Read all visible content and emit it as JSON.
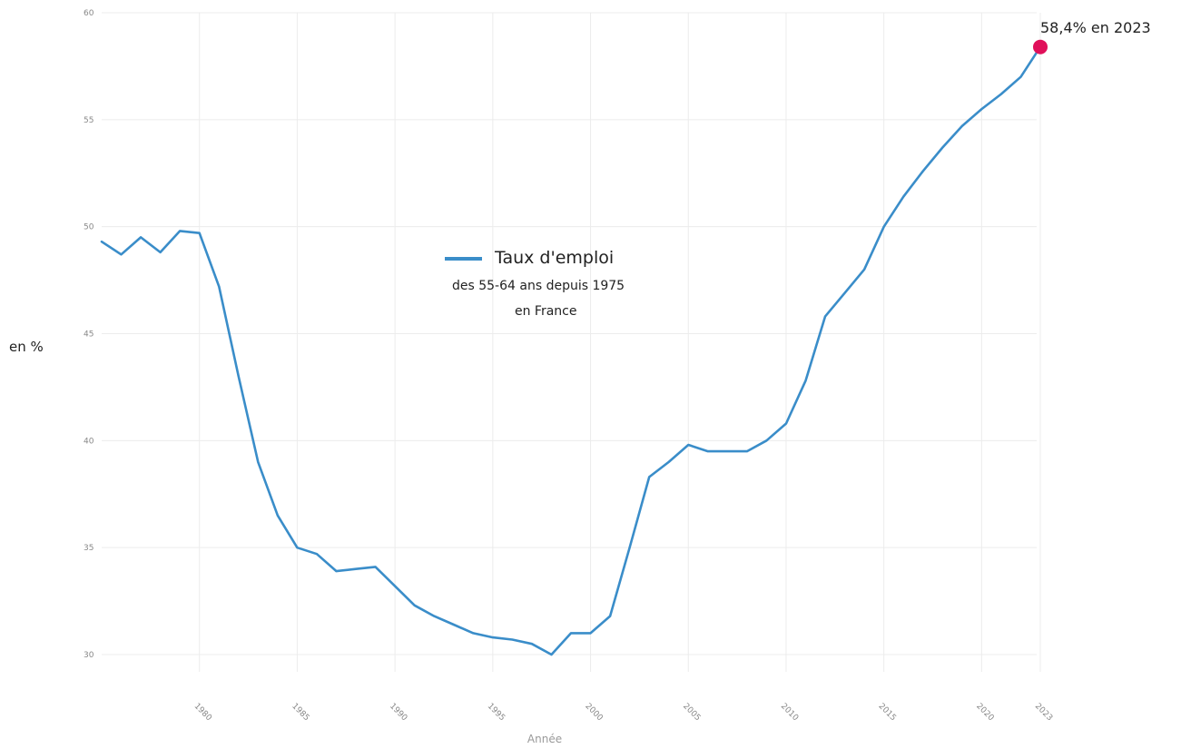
{
  "chart_data": {
    "type": "line",
    "ylabel": "en %",
    "xlabel": "Année",
    "ylim": [
      30,
      60
    ],
    "yticks": [
      30,
      35,
      40,
      45,
      50,
      55,
      60
    ],
    "xticks": [
      1980,
      1985,
      1990,
      1995,
      2000,
      2005,
      2010,
      2015,
      2020,
      2023
    ],
    "xlim": [
      1975,
      2023
    ],
    "grid": true,
    "legend": {
      "title": "Taux d'emploi",
      "subtitle_line1": "des 55-64 ans depuis 1975",
      "subtitle_line2": "en France",
      "placement": "center"
    },
    "annotation": {
      "label": "58,4% en 2023",
      "x": 2023,
      "y": 58.4,
      "color": "#e0105a"
    },
    "series": [
      {
        "color": "#3a8dc9",
        "x": [
          1975,
          1976,
          1977,
          1978,
          1979,
          1980,
          1981,
          1982,
          1983,
          1984,
          1985,
          1986,
          1987,
          1988,
          1989,
          1990,
          1991,
          1992,
          1993,
          1994,
          1995,
          1996,
          1997,
          1998,
          1999,
          2000,
          2001,
          2002,
          2003,
          2004,
          2005,
          2006,
          2007,
          2008,
          2009,
          2010,
          2011,
          2012,
          2013,
          2014,
          2015,
          2016,
          2017,
          2018,
          2019,
          2020,
          2021,
          2022,
          2023
        ],
        "values": [
          49.3,
          48.7,
          49.5,
          48.8,
          49.8,
          49.7,
          47.2,
          43.0,
          39.0,
          36.5,
          35.0,
          34.7,
          33.9,
          34.0,
          34.1,
          33.2,
          32.3,
          31.8,
          31.4,
          31.0,
          30.8,
          30.7,
          30.5,
          30.0,
          31.0,
          31.0,
          31.8,
          35.0,
          38.3,
          39.0,
          39.8,
          39.5,
          39.5,
          39.5,
          40.0,
          40.8,
          42.8,
          45.8,
          46.9,
          48.0,
          50.0,
          51.4,
          52.6,
          53.7,
          54.7,
          55.5,
          56.2,
          57.0,
          58.4
        ]
      }
    ]
  }
}
